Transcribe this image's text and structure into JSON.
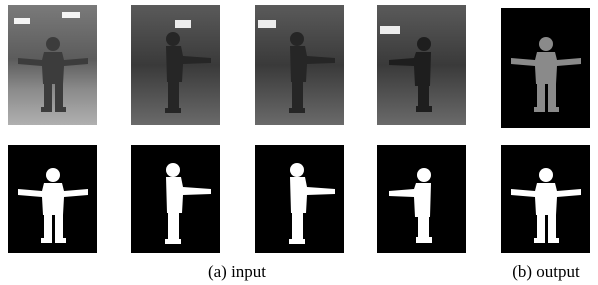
{
  "figure": {
    "captions": [
      "(a) input",
      "(b) output"
    ]
  }
}
